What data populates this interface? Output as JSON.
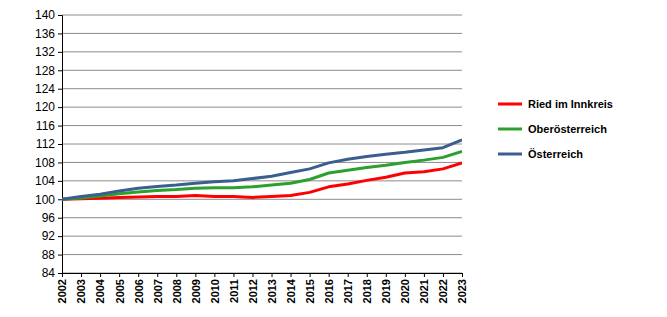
{
  "chart_data": {
    "type": "line",
    "categories": [
      "2002",
      "2003",
      "2004",
      "2005",
      "2006",
      "2007",
      "2008",
      "2009",
      "2010",
      "2011",
      "2012",
      "2013",
      "2014",
      "2015",
      "2016",
      "2017",
      "2018",
      "2019",
      "2020",
      "2021",
      "2022",
      "2023"
    ],
    "series": [
      {
        "name": "Ried im Innkreis",
        "color": "#ff0000",
        "values": [
          100,
          100.1,
          100.2,
          100.4,
          100.5,
          100.6,
          100.6,
          100.8,
          100.6,
          100.6,
          100.4,
          100.6,
          100.8,
          101.5,
          102.7,
          103.3,
          104.1,
          104.8,
          105.7,
          106.0,
          106.6,
          107.9
        ]
      },
      {
        "name": "Oberösterreich",
        "color": "#2ca02c",
        "values": [
          100,
          100.3,
          100.7,
          101.2,
          101.6,
          101.9,
          102.1,
          102.4,
          102.5,
          102.5,
          102.7,
          103.1,
          103.5,
          104.3,
          105.7,
          106.3,
          106.9,
          107.4,
          108.0,
          108.5,
          109.1,
          110.4
        ]
      },
      {
        "name": "Österreich",
        "color": "#3a5f8f",
        "values": [
          100,
          100.6,
          101.1,
          101.8,
          102.4,
          102.8,
          103.1,
          103.5,
          103.8,
          104.0,
          104.5,
          105.0,
          105.8,
          106.6,
          107.9,
          108.7,
          109.3,
          109.8,
          110.2,
          110.7,
          111.2,
          112.9
        ]
      }
    ],
    "ylim": [
      84,
      140
    ],
    "yticks": [
      84,
      88,
      92,
      96,
      100,
      104,
      108,
      112,
      116,
      120,
      124,
      128,
      132,
      136,
      140
    ],
    "grid": true,
    "legend": "right"
  }
}
